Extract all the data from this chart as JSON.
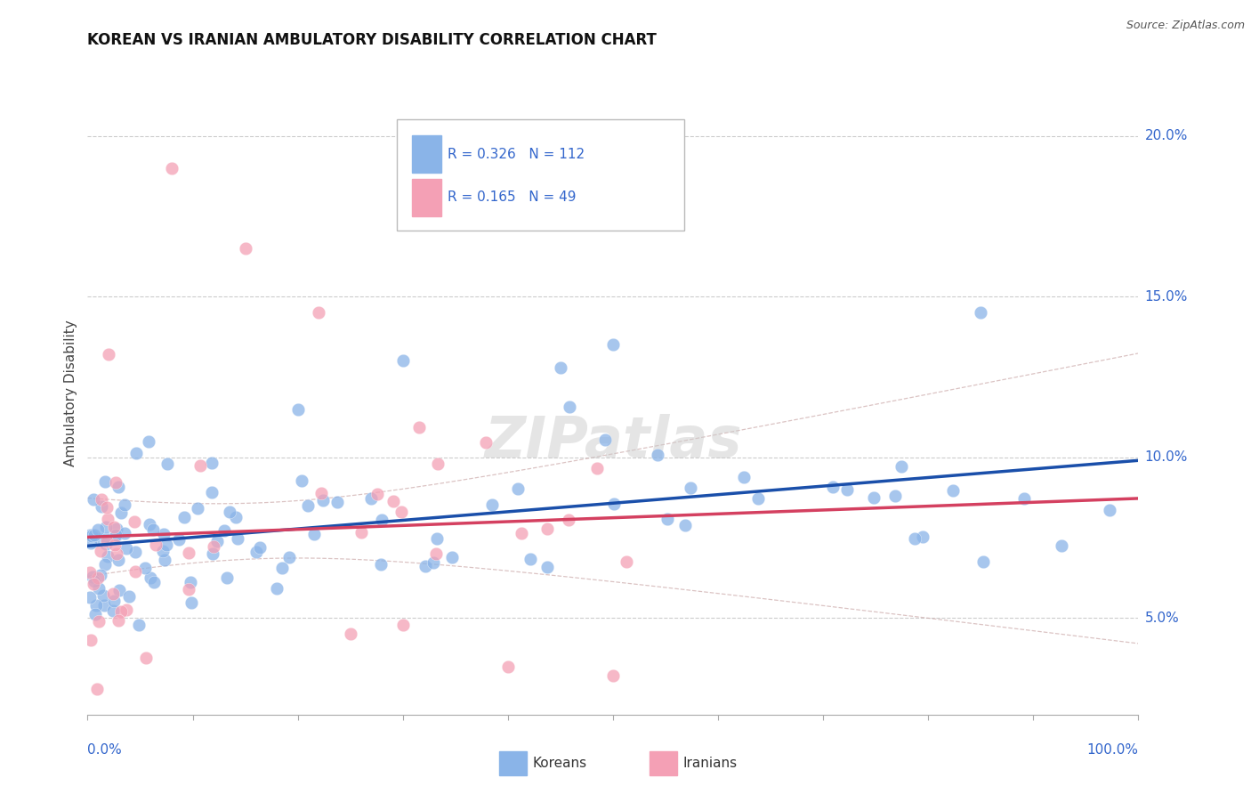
{
  "title": "KOREAN VS IRANIAN AMBULATORY DISABILITY CORRELATION CHART",
  "source": "Source: ZipAtlas.com",
  "ylabel": "Ambulatory Disability",
  "ymin": 2.0,
  "ymax": 22.0,
  "xmin": 0.0,
  "xmax": 100.0,
  "watermark": "ZIPatlas",
  "legend_korean_R": "R = 0.326",
  "legend_korean_N": "N = 112",
  "legend_iranian_R": "R = 0.165",
  "legend_iranian_N": "N = 49",
  "legend_label_korean": "Koreans",
  "legend_label_iranian": "Iranians",
  "korean_color": "#8ab4e8",
  "korean_line_color": "#1a4faa",
  "iranian_color": "#f4a0b5",
  "iranian_line_color": "#d44060",
  "ci_color": "#e8b0b0",
  "R_color": "#3366cc",
  "background_color": "#ffffff",
  "grid_color": "#cccccc",
  "ytick_values": [
    5.0,
    10.0,
    15.0,
    20.0
  ]
}
